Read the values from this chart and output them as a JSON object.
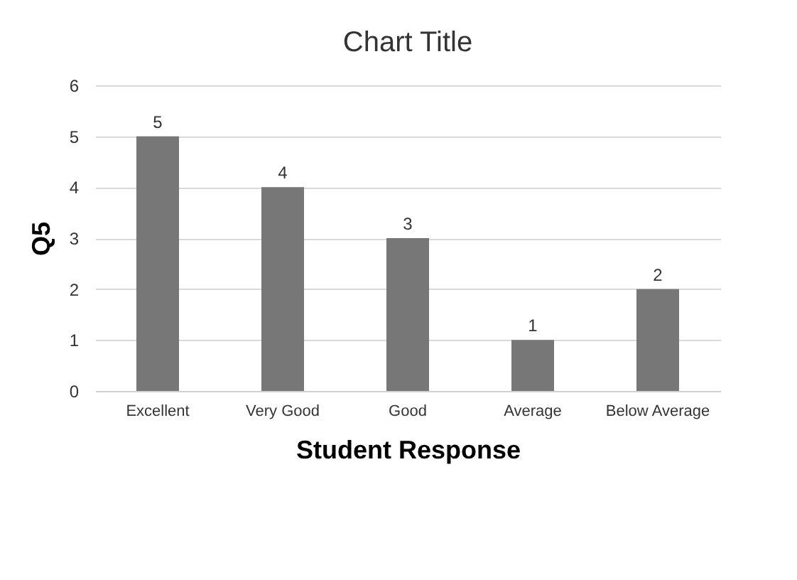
{
  "chart_data": {
    "type": "bar",
    "title": "Chart Title",
    "xlabel": "Student Response",
    "ylabel": "Q5",
    "categories": [
      "Excellent",
      "Very Good",
      "Good",
      "Average",
      "Below Average"
    ],
    "values": [
      5,
      4,
      3,
      1,
      2
    ],
    "color": "#777777",
    "ylim": [
      0,
      6
    ],
    "yticks": [
      0,
      1,
      2,
      3,
      4,
      5,
      6
    ],
    "grid": "y",
    "data_labels": true
  }
}
